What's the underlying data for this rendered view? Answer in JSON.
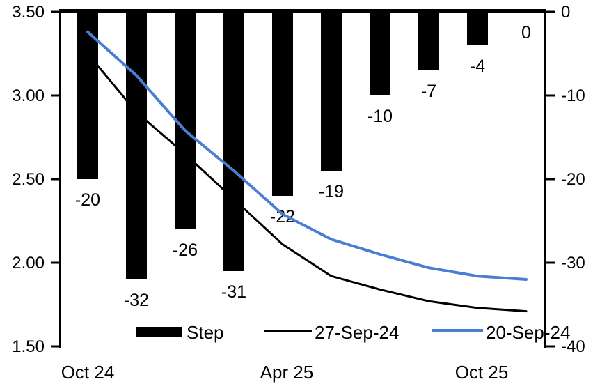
{
  "chart_data": {
    "type": "combo-bar-line",
    "title": "",
    "x_tick_labels": [
      {
        "label": "Oct 24",
        "index": 0
      },
      {
        "label": "Apr 25",
        "index": 4
      },
      {
        "label": "Oct 25",
        "index": 8
      }
    ],
    "left_axis": {
      "min": 1.5,
      "max": 3.5,
      "tick_step": 0.5,
      "tick_labels": [
        "3.50",
        "3.00",
        "2.50",
        "2.00",
        "1.50"
      ]
    },
    "right_axis": {
      "min": -40,
      "max": 0,
      "tick_step": 10,
      "tick_labels": [
        "0",
        "-10",
        "-20",
        "-30",
        "-40"
      ]
    },
    "bars": {
      "name": "Step",
      "axis": "right",
      "color": "#000000",
      "values": [
        -20,
        -32,
        -26,
        -31,
        -22,
        -19,
        -10,
        -7,
        -4,
        0
      ],
      "labels": [
        "-20",
        "-32",
        "-26",
        "-31",
        "-22",
        "-19",
        "-10",
        "-7",
        "-4",
        "0"
      ]
    },
    "lines": [
      {
        "name": "27-Sep-24",
        "axis": "left",
        "color": "#000000",
        "stroke_width": 3,
        "values": [
          3.25,
          2.9,
          2.65,
          2.38,
          2.11,
          1.92,
          1.84,
          1.77,
          1.73,
          1.71
        ]
      },
      {
        "name": "20-Sep-24",
        "axis": "left",
        "color": "#4A7ED4",
        "stroke_width": 4,
        "values": [
          3.38,
          3.12,
          2.79,
          2.55,
          2.29,
          2.14,
          2.05,
          1.97,
          1.92,
          1.9
        ]
      }
    ],
    "legend": {
      "bar_label": "Step",
      "line1_label": "27-Sep-24",
      "line2_label": "20-Sep-24"
    },
    "colors": {
      "bar": "#000000",
      "line_27sep": "#000000",
      "line_20sep": "#4A7ED4",
      "axis": "#000000",
      "text": "#000000",
      "background": "#FFFFFF"
    },
    "grid": false,
    "legend_position": "bottom"
  }
}
